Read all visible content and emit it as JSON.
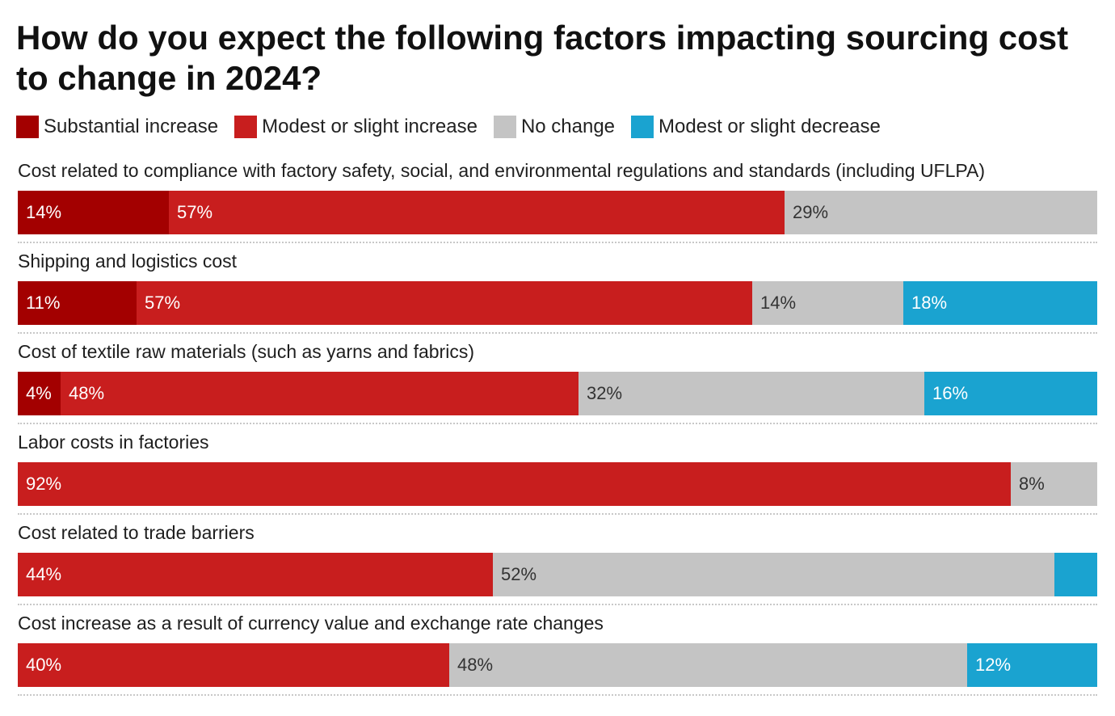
{
  "colors": {
    "substantial_increase": "#a30000",
    "modest_increase": "#c81e1e",
    "no_change": "#c4c4c4",
    "modest_decrease": "#1aa3d0"
  },
  "chart_data": {
    "type": "bar",
    "orientation": "horizontal",
    "stacked": true,
    "title": "How do you expect the following factors impacting sourcing cost to change in 2024?",
    "legend_position": "top-left",
    "categories": [
      "Cost related to compliance with factory safety, social, and environmental regulations and standards (including UFLPA)",
      "Shipping and logistics cost",
      "Cost of textile raw materials (such as yarns and fabrics)",
      "Labor costs in factories",
      "Cost related to trade barriers",
      "Cost increase as a result of currency value and exchange rate changes"
    ],
    "series": [
      {
        "name": "Substantial increase",
        "color": "#a30000",
        "text_color": "#ffffff",
        "values": [
          14,
          11,
          4,
          0,
          0,
          0
        ],
        "labels": [
          "14%",
          "11%",
          "4%",
          "",
          "",
          ""
        ]
      },
      {
        "name": "Modest or slight increase",
        "color": "#c81e1e",
        "text_color": "#ffffff",
        "values": [
          57,
          57,
          48,
          92,
          44,
          40
        ],
        "labels": [
          "57%",
          "57%",
          "48%",
          "92%",
          "44%",
          "40%"
        ]
      },
      {
        "name": "No change",
        "color": "#c4c4c4",
        "text_color": "#333333",
        "values": [
          29,
          14,
          32,
          8,
          52,
          48
        ],
        "labels": [
          "29%",
          "14%",
          "32%",
          "8%",
          "52%",
          "48%"
        ]
      },
      {
        "name": "Modest or slight decrease",
        "color": "#1aa3d0",
        "text_color": "#ffffff",
        "values": [
          0,
          18,
          16,
          0,
          4,
          12
        ],
        "labels": [
          "",
          "18%",
          "16%",
          "",
          "",
          "12%"
        ]
      }
    ]
  }
}
